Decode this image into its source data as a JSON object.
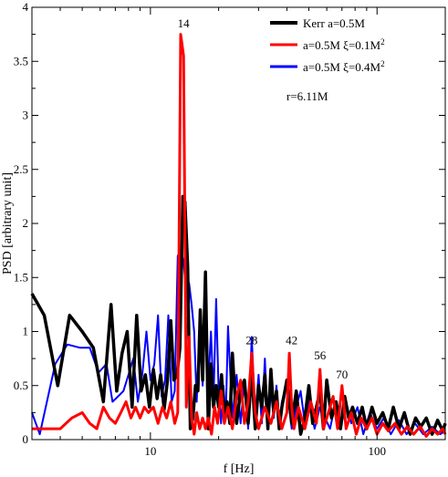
{
  "chart_data": {
    "type": "line",
    "xlabel": "f [Hz]",
    "ylabel": "PSD [arbitrary unit]",
    "xscale": "log",
    "xlim": [
      3,
      200
    ],
    "ylim": [
      0,
      4
    ],
    "x_ticks": [
      10,
      100
    ],
    "x_tick_labels": [
      "10",
      "100"
    ],
    "y_ticks": [
      0,
      0.5,
      1,
      1.5,
      2,
      2.5,
      3,
      3.5,
      4
    ],
    "y_tick_labels": [
      "0",
      "0.5",
      "1",
      "1.5",
      "2",
      "2.5",
      "3",
      "3.5",
      "4"
    ],
    "grid": false,
    "legend_position": "top-right",
    "legend": [
      {
        "label": "Kerr a=0.5M",
        "color": "#000000"
      },
      {
        "label": "a=0.5M   ξ=0.1M",
        "sup": "2",
        "color": "#ff0000"
      },
      {
        "label": "a=0.5M   ξ=0.4M",
        "sup": "2",
        "color": "#0000ff"
      }
    ],
    "annotation": "r=6.11M",
    "peak_labels": [
      {
        "text": "14",
        "x": 14,
        "y": 3.78
      },
      {
        "text": "28",
        "x": 28,
        "y": 0.85
      },
      {
        "text": "42",
        "x": 42,
        "y": 0.85
      },
      {
        "text": "56",
        "x": 56,
        "y": 0.71
      },
      {
        "text": "70",
        "x": 70,
        "y": 0.53
      }
    ],
    "series": [
      {
        "name": "Kerr a=0.5M",
        "color": "#000000",
        "width": 3.5,
        "x": [
          3,
          3.4,
          3.9,
          4.4,
          5,
          5.6,
          6.2,
          6.7,
          7.1,
          7.5,
          7.9,
          8.3,
          8.7,
          9.1,
          9.5,
          9.9,
          10.3,
          10.7,
          11.1,
          11.5,
          11.9,
          12.3,
          12.7,
          13.1,
          13.5,
          13.9,
          14.2,
          14.6,
          15.0,
          15.4,
          15.8,
          16.2,
          16.6,
          17.0,
          17.5,
          18.0,
          18.5,
          19.0,
          19.5,
          20.0,
          20.6,
          21.2,
          21.8,
          22.4,
          23,
          24,
          25,
          26,
          27,
          28,
          29,
          30,
          31,
          32,
          33,
          34,
          35,
          36,
          37,
          38,
          40,
          42,
          44,
          46,
          48,
          50,
          52,
          54,
          56,
          58,
          60,
          63,
          66,
          69,
          72,
          75,
          78,
          82,
          86,
          90,
          95,
          100,
          106,
          112,
          118,
          125,
          132,
          140,
          148,
          156,
          165,
          175,
          185,
          195,
          200
        ],
        "y": [
          1.35,
          1.15,
          0.5,
          1.15,
          1.0,
          0.85,
          0.35,
          1.25,
          0.45,
          0.8,
          1.0,
          0.3,
          1.15,
          0.45,
          0.6,
          0.3,
          0.65,
          0.38,
          0.6,
          0.28,
          0.55,
          1.1,
          0.55,
          0.6,
          0.85,
          2.25,
          2.2,
          1.6,
          0.1,
          0.2,
          0.5,
          0.45,
          1.2,
          0.55,
          1.55,
          0.1,
          0.7,
          0.3,
          0.5,
          0.3,
          0.6,
          0.2,
          0.35,
          0.15,
          0.8,
          0.15,
          0.45,
          0.55,
          0.15,
          0.65,
          0.1,
          0.5,
          0.3,
          0.6,
          0.1,
          0.65,
          0.25,
          0.45,
          0.1,
          0.3,
          0.55,
          0.15,
          0.45,
          0.05,
          0.2,
          0.5,
          0.15,
          0.3,
          0.45,
          0.1,
          0.55,
          0.2,
          0.35,
          0.1,
          0.4,
          0.2,
          0.3,
          0.15,
          0.3,
          0.1,
          0.3,
          0.15,
          0.25,
          0.1,
          0.3,
          0.1,
          0.25,
          0.05,
          0.2,
          0.12,
          0.2,
          0.05,
          0.18,
          0.08,
          0.15
        ]
      },
      {
        "name": "a=0.5M   ξ=0.1M2",
        "color": "#ff0000",
        "width": 3,
        "x": [
          3,
          3.5,
          4.0,
          4.5,
          5.0,
          5.4,
          5.8,
          6.2,
          6.6,
          7.0,
          7.4,
          7.8,
          8.2,
          8.6,
          9.0,
          9.4,
          9.8,
          10.3,
          10.8,
          11.3,
          11.8,
          12.3,
          12.8,
          13.2,
          13.6,
          14.0,
          14.4,
          14.8,
          15.2,
          15.6,
          16.0,
          16.5,
          17.0,
          17.5,
          18.0,
          18.6,
          19.2,
          19.8,
          20.5,
          21.2,
          22,
          23,
          24,
          25,
          26,
          27,
          28,
          29,
          30,
          32,
          34,
          36,
          38,
          40,
          41,
          42,
          43,
          45,
          48,
          51,
          54,
          56,
          58,
          61,
          64,
          67,
          70,
          73,
          77,
          81,
          85,
          90,
          95,
          100,
          106,
          112,
          120,
          128,
          136,
          145,
          155,
          165,
          175,
          185,
          195,
          200
        ],
        "y": [
          0.1,
          0.1,
          0.1,
          0.2,
          0.25,
          0.15,
          0.1,
          0.3,
          0.2,
          0.15,
          0.25,
          0.35,
          0.2,
          0.3,
          0.2,
          0.3,
          0.25,
          0.3,
          0.15,
          0.3,
          0.2,
          0.35,
          0.15,
          0.25,
          3.75,
          3.55,
          0.3,
          0.95,
          0.2,
          0.05,
          0.25,
          0.1,
          0.2,
          0.1,
          0.2,
          0.05,
          0.3,
          0.15,
          0.45,
          0.15,
          0.3,
          0.1,
          0.4,
          0.55,
          0.15,
          0.35,
          0.8,
          0.25,
          0.1,
          0.3,
          0.15,
          0.35,
          0.1,
          0.25,
          0.8,
          0.3,
          0.1,
          0.3,
          0.1,
          0.35,
          0.15,
          0.65,
          0.1,
          0.25,
          0.4,
          0.1,
          0.5,
          0.1,
          0.25,
          0.05,
          0.2,
          0.1,
          0.2,
          0.05,
          0.15,
          0.08,
          0.15,
          0.05,
          0.12,
          0.05,
          0.12,
          0.03,
          0.1,
          0.05,
          0.1,
          0.05
        ]
      },
      {
        "name": "a=0.5M   ξ=0.4M2",
        "color": "#0000ff",
        "width": 2,
        "x": [
          3,
          3.25,
          3.8,
          4.3,
          4.9,
          5.4,
          5.9,
          6.4,
          6.8,
          7.2,
          7.6,
          8.0,
          8.4,
          8.8,
          9.2,
          9.6,
          10.0,
          10.4,
          10.8,
          11.2,
          11.6,
          12.0,
          12.4,
          12.8,
          13.2,
          13.6,
          14.0,
          14.4,
          14.8,
          15.2,
          15.6,
          16.0,
          16.5,
          17.0,
          17.5,
          18.0,
          18.5,
          19.0,
          19.5,
          20.0,
          20.5,
          21.0,
          21.5,
          22.0,
          23,
          24,
          25,
          26,
          27,
          28,
          29,
          30,
          31,
          32,
          33,
          34,
          35,
          36,
          37,
          38,
          40,
          42,
          44,
          46,
          48,
          50,
          53,
          56,
          59,
          62,
          65,
          69,
          73,
          77,
          82,
          87,
          93,
          100,
          107,
          115,
          125,
          135,
          147,
          160,
          175,
          190,
          200
        ],
        "y": [
          0.25,
          0.05,
          0.7,
          0.88,
          0.85,
          0.85,
          0.62,
          0.7,
          0.35,
          0.4,
          0.45,
          0.6,
          0.75,
          0.35,
          0.6,
          1.0,
          0.55,
          0.7,
          1.15,
          0.4,
          0.55,
          1.15,
          0.35,
          0.45,
          1.7,
          1.75,
          1.65,
          1.35,
          1.45,
          1.25,
          1.0,
          0.35,
          1.05,
          0.5,
          1.2,
          0.5,
          1.0,
          0.4,
          1.3,
          0.45,
          0.15,
          0.5,
          0.2,
          1.05,
          0.2,
          0.6,
          0.15,
          0.55,
          0.1,
          0.95,
          0.2,
          0.6,
          0.15,
          0.75,
          0.1,
          0.45,
          0.2,
          0.5,
          0.1,
          0.35,
          0.5,
          0.1,
          0.3,
          0.45,
          0.15,
          0.35,
          0.1,
          0.3,
          0.2,
          0.1,
          0.3,
          0.1,
          0.35,
          0.15,
          0.3,
          0.05,
          0.25,
          0.1,
          0.2,
          0.05,
          0.18,
          0.05,
          0.15,
          0.05,
          0.12,
          0.05,
          0.08
        ]
      }
    ]
  }
}
